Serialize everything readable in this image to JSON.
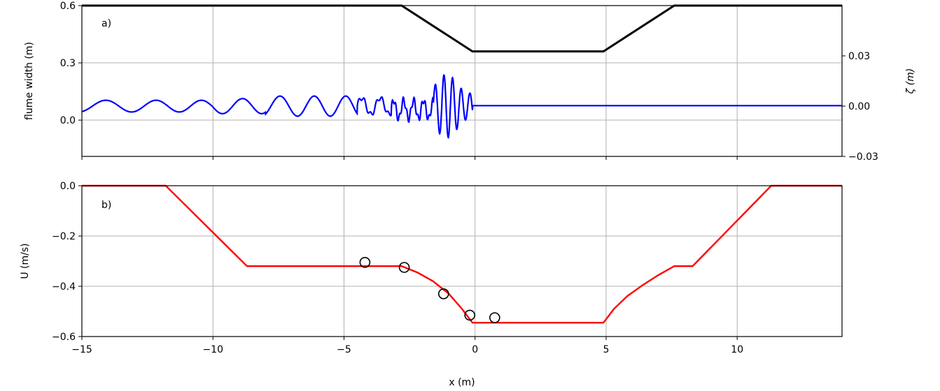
{
  "chart_data": [
    {
      "type": "line",
      "panel_label": "a)",
      "xlim": [
        -15,
        14
      ],
      "x_ticks": [
        -15,
        -10,
        -5,
        0,
        5,
        10
      ],
      "ylabel": "flume width (m)",
      "ylim": [
        -0.19,
        0.6
      ],
      "y_ticks": [
        0.0,
        0.3,
        0.6
      ],
      "y_tick_labels": [
        "0.0",
        "0.3",
        "0.6"
      ],
      "y2label": "ζ (m)",
      "y2lim": [
        -0.03,
        0.06
      ],
      "y2_ticks": [
        -0.03,
        0.0,
        0.03
      ],
      "y2_tick_labels": [
        "−0.03",
        "0.00",
        "0.03"
      ],
      "grid": true,
      "series": [
        {
          "axis": "left",
          "color": "#000000",
          "x": [
            -15,
            -2.8,
            -0.1,
            4.9,
            7.6,
            14
          ],
          "y": [
            0.6,
            0.6,
            0.36,
            0.36,
            0.6,
            0.6
          ]
        },
        {
          "axis": "right",
          "color": "#0000ff",
          "description": "surface elevation wave train",
          "x_start": -15,
          "x_end": 14,
          "quiet_after": -0.1
        }
      ]
    },
    {
      "type": "line",
      "panel_label": "b)",
      "xlim": [
        -15,
        14
      ],
      "x_ticks": [
        -15,
        -10,
        -5,
        0,
        5,
        10
      ],
      "x_tick_labels": [
        "−15",
        "−10",
        "−5",
        "0",
        "5",
        "10"
      ],
      "xlabel": "x (m)",
      "ylabel": "U (m/s)",
      "ylim": [
        -0.6,
        0.0
      ],
      "y_ticks": [
        -0.6,
        -0.4,
        -0.2,
        0.0
      ],
      "y_tick_labels": [
        "−0.6",
        "−0.4",
        "−0.2",
        "0.0"
      ],
      "grid": true,
      "series": [
        {
          "type": "line",
          "color": "#ff0000",
          "x": [
            -15,
            -11.8,
            -8.7,
            -2.8,
            -2.2,
            -1.6,
            -1.0,
            -0.5,
            -0.1,
            4.9,
            5.3,
            5.8,
            6.4,
            7.0,
            7.6,
            8.3,
            11.3,
            14
          ],
          "y": [
            0.0,
            0.0,
            -0.32,
            -0.32,
            -0.345,
            -0.38,
            -0.43,
            -0.49,
            -0.545,
            -0.545,
            -0.49,
            -0.44,
            -0.395,
            -0.355,
            -0.32,
            -0.32,
            0.0,
            0.0
          ]
        },
        {
          "type": "scatter",
          "color": "#000000",
          "marker": "open-circle",
          "x": [
            -4.2,
            -2.7,
            -1.2,
            -0.2,
            0.75
          ],
          "y": [
            -0.305,
            -0.325,
            -0.43,
            -0.515,
            -0.525
          ]
        }
      ]
    }
  ]
}
